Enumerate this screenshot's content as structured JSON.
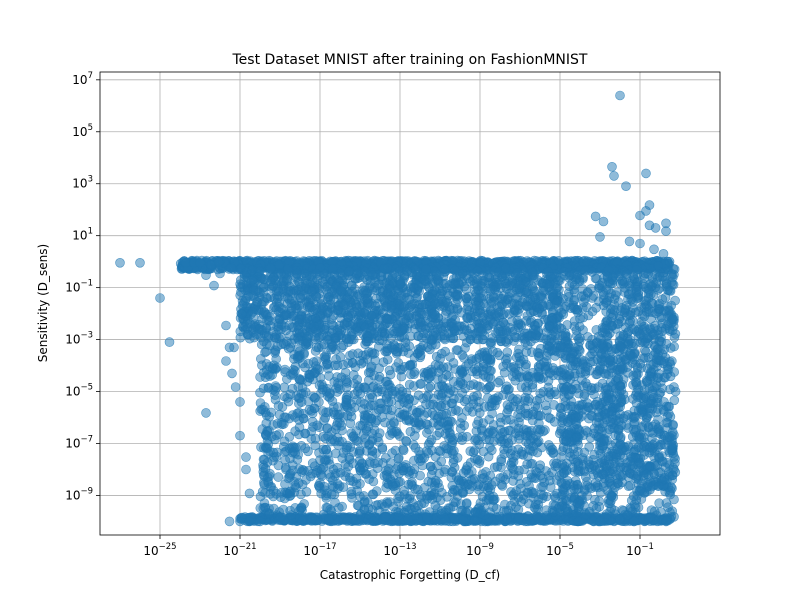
{
  "chart_data": {
    "type": "scatter",
    "title": "Test Dataset MNIST after training on FashionMNIST",
    "xlabel": "Catastrophic Forgetting (D_cf)",
    "ylabel": "Sensitivity (D_sens)",
    "xscale": "log",
    "yscale": "log",
    "xlim": [
      1e-28,
      1000.0
    ],
    "ylim": [
      3e-11,
      20000000.0
    ],
    "grid": true,
    "marker_color": "#1f77b4",
    "marker_alpha": 0.5,
    "xticks": [
      {
        "value": 1e-25,
        "base": "10",
        "exp": "−25"
      },
      {
        "value": 1e-21,
        "base": "10",
        "exp": "−21"
      },
      {
        "value": 1e-17,
        "base": "10",
        "exp": "−17"
      },
      {
        "value": 1e-13,
        "base": "10",
        "exp": "−13"
      },
      {
        "value": 1e-09,
        "base": "10",
        "exp": "−9"
      },
      {
        "value": 1e-05,
        "base": "10",
        "exp": "−5"
      },
      {
        "value": 0.1,
        "base": "10",
        "exp": "−1"
      }
    ],
    "yticks": [
      {
        "value": 10000000.0,
        "base": "10",
        "exp": "7"
      },
      {
        "value": 100000.0,
        "base": "10",
        "exp": "5"
      },
      {
        "value": 1000.0,
        "base": "10",
        "exp": "3"
      },
      {
        "value": 10.0,
        "base": "10",
        "exp": "1"
      },
      {
        "value": 0.1,
        "base": "10",
        "exp": "−1"
      },
      {
        "value": 0.001,
        "base": "10",
        "exp": "−3"
      },
      {
        "value": 1e-05,
        "base": "10",
        "exp": "−5"
      },
      {
        "value": 1e-07,
        "base": "10",
        "exp": "−7"
      },
      {
        "value": 1e-09,
        "base": "10",
        "exp": "−9"
      }
    ],
    "points": [
      [
        1e-27,
        0.9
      ],
      [
        1e-26,
        0.9
      ],
      [
        2e-24,
        0.9
      ],
      [
        5e-24,
        0.9
      ],
      [
        1e-23,
        0.9
      ],
      [
        2e-23,
        0.3
      ],
      [
        1e-22,
        0.35
      ],
      [
        5e-23,
        0.12
      ],
      [
        1e-25,
        0.04
      ],
      [
        3e-25,
        0.0008
      ],
      [
        2e-22,
        0.0035
      ],
      [
        3e-22,
        0.0005
      ],
      [
        5e-22,
        0.0005
      ],
      [
        2e-22,
        0.00015
      ],
      [
        4e-22,
        5e-05
      ],
      [
        6e-22,
        1.5e-05
      ],
      [
        2e-23,
        1.5e-06
      ],
      [
        1e-21,
        4e-06
      ],
      [
        1e-21,
        2e-07
      ],
      [
        2e-21,
        3e-08
      ],
      [
        2e-21,
        1e-08
      ],
      [
        3e-21,
        1.2e-09
      ],
      [
        3e-22,
        1e-10
      ],
      [
        1e-21,
        1e-10
      ],
      [
        3e-21,
        1e-10
      ],
      [
        1e-20,
        1e-10
      ],
      [
        0.01,
        2500000.0
      ],
      [
        0.004,
        4500
      ],
      [
        0.005,
        2000
      ],
      [
        0.02,
        800
      ],
      [
        0.2,
        2500
      ],
      [
        0.3,
        150
      ],
      [
        0.1,
        60
      ],
      [
        0.2,
        90
      ],
      [
        0.0006,
        55
      ],
      [
        0.0015,
        35
      ],
      [
        0.001,
        9
      ],
      [
        0.03,
        6
      ],
      [
        0.3,
        25
      ],
      [
        0.6,
        20
      ],
      [
        2,
        30
      ],
      [
        2,
        15
      ],
      [
        0.1,
        5
      ],
      [
        0.5,
        3
      ],
      [
        3,
        1
      ],
      [
        1.5,
        2
      ],
      [
        0.8,
        0.7
      ],
      [
        4,
        0.3
      ],
      [
        6,
        1e-05
      ],
      [
        5,
        1e-08
      ],
      [
        5,
        7e-10
      ],
      [
        5,
        1.5e-10
      ],
      [
        8e-05,
        1e-10
      ],
      [
        0.001,
        1e-10
      ],
      [
        0.05,
        1e-10
      ],
      [
        2,
        1e-10
      ]
    ],
    "clusters": [
      {
        "xrange": [
          1e-24,
          3
        ],
        "yrange": [
          0.5,
          1.1
        ],
        "count": 1300,
        "xdist": "uniform",
        "ydist": "uniform"
      },
      {
        "xrange": [
          1e-21,
          4
        ],
        "yrange": [
          1e-10,
          1.5e-10
        ],
        "count": 700,
        "xdist": "uniform",
        "ydist": "uniform"
      },
      {
        "xrange": [
          1e-21,
          1e-05
        ],
        "yrange": [
          0.001,
          0.6
        ],
        "count": 1500,
        "xdist": "uniform",
        "ydist": "log"
      },
      {
        "xrange": [
          1e-20,
          0.0001
        ],
        "yrange": [
          1e-10,
          0.001
        ],
        "count": 1700,
        "xdist": "uniform",
        "ydist": "log"
      },
      {
        "xrange": [
          1e-05,
          5
        ],
        "yrange": [
          1e-10,
          0.6
        ],
        "count": 900,
        "xdist": "uniform",
        "ydist": "log"
      },
      {
        "xrange": [
          0.001,
          6
        ],
        "yrange": [
          1e-09,
          1
        ],
        "count": 350,
        "xdist": "uniform",
        "ydist": "log"
      }
    ]
  }
}
